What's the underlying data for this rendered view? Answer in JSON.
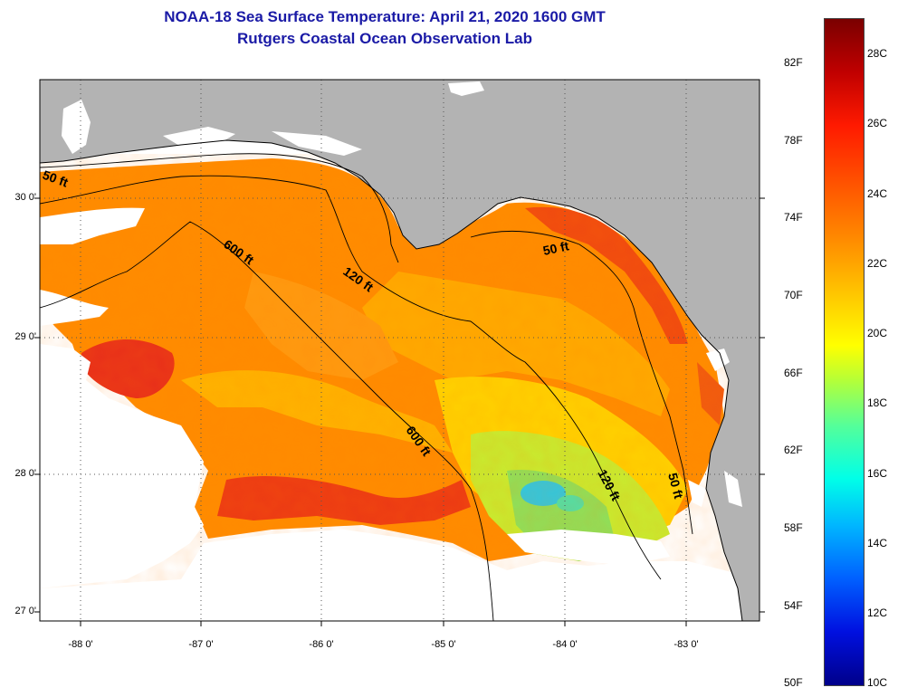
{
  "header": {
    "title_line1": "NOAA-18 Sea Surface Temperature:  April 21, 2020 1600 GMT",
    "title_line2": "Rutgers Coastal Ocean Observation Lab"
  },
  "map": {
    "lat_labels": [
      "30 0'",
      "29 0'",
      "28 0'",
      "27 0'"
    ],
    "lon_labels": [
      "-88 0'",
      "-87 0'",
      "-86 0'",
      "-85 0'",
      "-84 0'",
      "-83 0'"
    ],
    "contour_labels": {
      "c50_west": "50 ft",
      "c600_upper": "600 ft",
      "c120_mid": "120 ft",
      "c50_east": "50 ft",
      "c600_lower": "600 ft",
      "c120_south": "120 ft",
      "c50_south": "50 ft"
    },
    "colors": {
      "land": "#b3b3b3",
      "nodata": "#ffffff",
      "sst_warm": "#ff7a00",
      "sst_hot": "#e8301a",
      "sst_mid": "#ffc000",
      "sst_cool": "#b8e830",
      "sst_cold": "#40d8c8"
    }
  },
  "colorbar": {
    "fahrenheit_labels": [
      "82F",
      "78F",
      "74F",
      "70F",
      "66F",
      "62F",
      "58F",
      "54F",
      "50F"
    ],
    "celsius_labels": [
      "28C",
      "26C",
      "24C",
      "22C",
      "20C",
      "18C",
      "16C",
      "14C",
      "12C",
      "10C"
    ]
  }
}
